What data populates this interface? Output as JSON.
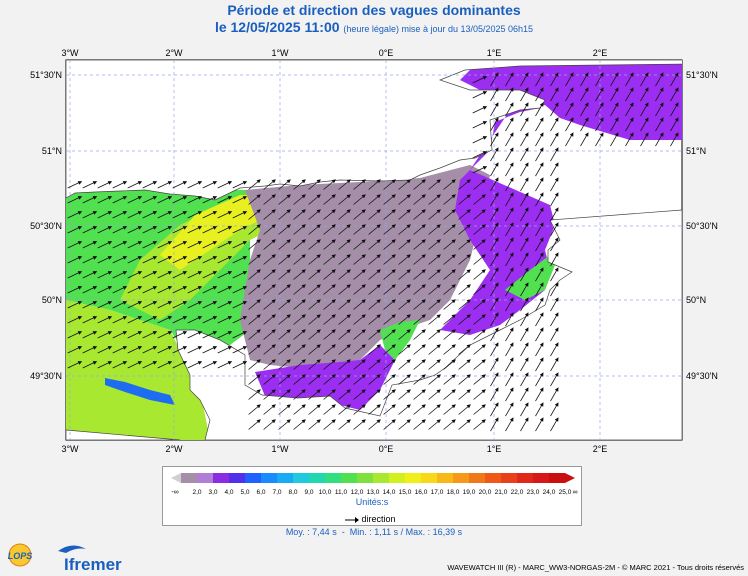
{
  "title": "Période et direction des vagues dominantes",
  "subtitle_main": "le 12/05/2025 11:00",
  "subtitle_small": "(heure légale) mise à jour du 13/05/2025 06h15",
  "lon_labels": [
    "3°W",
    "2°W",
    "1°W",
    "0°E",
    "1°E",
    "2°E"
  ],
  "lat_labels": [
    "51°30'N",
    "51°N",
    "50°30'N",
    "50°N",
    "49°30'N"
  ],
  "legend": {
    "min_symbol": "-∞",
    "max_symbol": "∞",
    "ticks": [
      "2,0",
      "3,0",
      "4,0",
      "5,0",
      "6,0",
      "7,0",
      "8,0",
      "9,0",
      "10,0",
      "11,0",
      "12,0",
      "13,0",
      "14,0",
      "15,0",
      "16,0",
      "17,0",
      "18,0",
      "19,0",
      "20,0",
      "21,0",
      "22,0",
      "23,0",
      "24,0",
      "25,0"
    ],
    "colors": [
      "#a48ea8",
      "#b07ed6",
      "#8b2be2",
      "#5030e8",
      "#2060ff",
      "#1a8bff",
      "#18aaf5",
      "#20c8e0",
      "#20d8b0",
      "#30e080",
      "#50e050",
      "#80e040",
      "#a8e830",
      "#d0f020",
      "#f0f018",
      "#f8d818",
      "#f8b818",
      "#f89818",
      "#f07818",
      "#f05818",
      "#e84018",
      "#e02818",
      "#d81818",
      "#c81010"
    ],
    "unit_label": "Unités",
    "unit_value": "s",
    "direction_label": "direction"
  },
  "stats": {
    "moy_label": "Moy.",
    "moy": "7,44 s",
    "min_label": "Min.",
    "min": "1,11 s",
    "max_label": "Max.",
    "max": "16,39 s"
  },
  "logos": {
    "lops": "LOPS",
    "ifremer": "Ifremer"
  },
  "credit": "WAVEWATCH III (R) - MARC_WW3-NORGAS-2M - © MARC 2021 - Tous droits réservés",
  "map": {
    "land_color": "#ffffff",
    "colors": {
      "grey": "#a48ea8",
      "purple": "#9b2ef0",
      "blue": "#1e6cf0",
      "green": "#50e050",
      "lime": "#a8e830",
      "yellow": "#e8f020"
    }
  }
}
